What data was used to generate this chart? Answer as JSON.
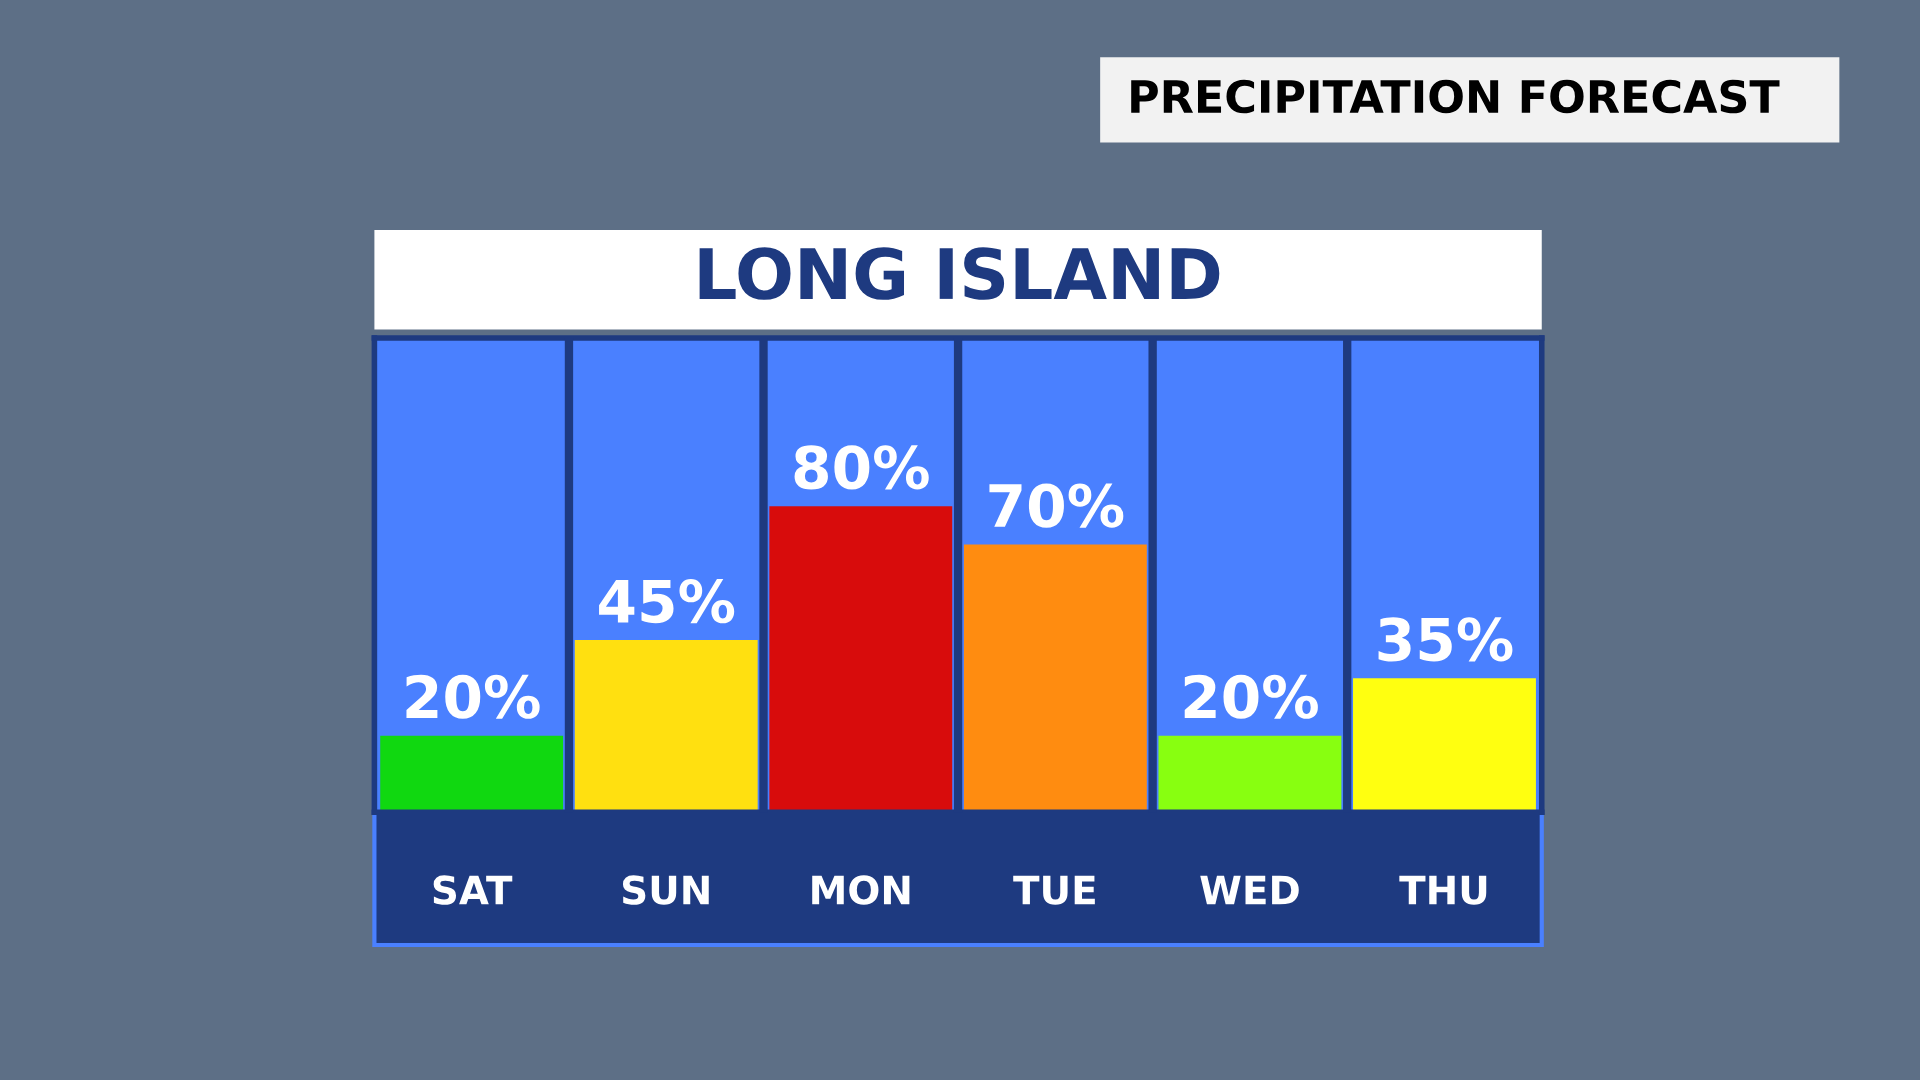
{
  "chart_data": {
    "type": "bar",
    "title": "LONG ISLAND",
    "subtitle": "PRECIPITATION FORECAST",
    "categories": [
      "SAT",
      "SUN",
      "MON",
      "TUE",
      "WED",
      "THU"
    ],
    "values": [
      20,
      45,
      80,
      70,
      20,
      35
    ],
    "value_labels": [
      "20%",
      "45%",
      "80%",
      "70%",
      "20%",
      "35%"
    ],
    "colors": [
      "#10d810",
      "#ffe010",
      "#d80c0c",
      "#ff8c10",
      "#88ff10",
      "#ffff10"
    ],
    "grid": false,
    "legend": false
  }
}
